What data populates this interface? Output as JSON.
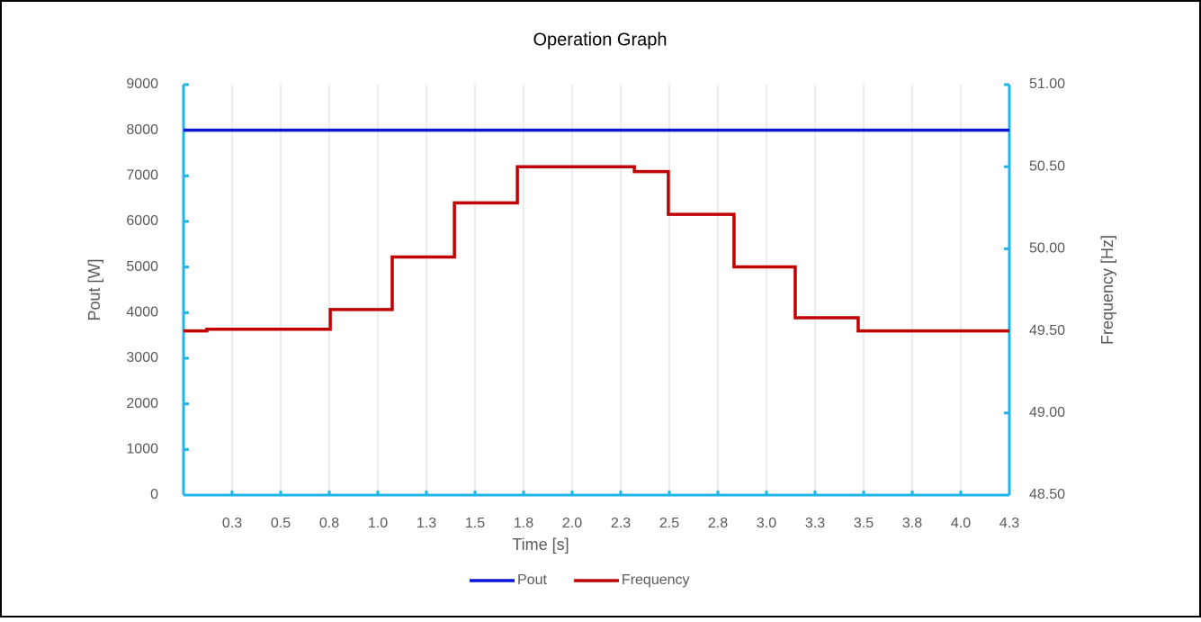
{
  "chart_data": {
    "type": "line",
    "title": "Operation Graph",
    "x_label": "Time [s]",
    "y_label": "Pout [W]",
    "y2_label": "Frequency [Hz]",
    "xlim": [
      0,
      4.25
    ],
    "xticks": [
      {
        "value": 0.25,
        "label": "0.3"
      },
      0.5,
      {
        "value": 0.75,
        "label": "0.8"
      },
      {
        "value": 1,
        "label": "1.0"
      },
      {
        "value": 1.25,
        "label": "1.3"
      },
      1.5,
      {
        "value": 1.75,
        "label": "1.8"
      },
      {
        "value": 2,
        "label": "2.0"
      },
      {
        "value": 2.25,
        "label": "2.3"
      },
      2.5,
      {
        "value": 2.75,
        "label": "2.8"
      },
      {
        "value": 3,
        "label": "3.0"
      },
      {
        "value": 3.25,
        "label": "3.3"
      },
      3.5,
      {
        "value": 3.75,
        "label": "3.8"
      },
      {
        "value": 4,
        "label": "4.0"
      },
      {
        "value": 4.25,
        "label": "4.3"
      }
    ],
    "ylim": [
      0,
      9000
    ],
    "yticks": [
      0,
      1000,
      2000,
      3000,
      4000,
      5000,
      6000,
      7000,
      8000,
      9000
    ],
    "y2lim": [
      48.5,
      51
    ],
    "y2ticks": [
      {
        "value": 48.5,
        "label": "48.50"
      },
      {
        "value": 49,
        "label": "49.00"
      },
      {
        "value": 49.5,
        "label": "49.50"
      },
      {
        "value": 50,
        "label": "50.00"
      },
      {
        "value": 50.5,
        "label": "50.50"
      },
      {
        "value": 51,
        "label": "51.00"
      }
    ],
    "grid": "x",
    "legend": "bottom",
    "series": [
      {
        "name": "Pout",
        "color": "#0a14d8",
        "x": [
          0,
          4.25
        ],
        "values": [
          8000,
          8000
        ]
      },
      {
        "name": "Frequency",
        "color": "#c00000",
        "axis": "y2",
        "x": [
          0,
          0.12,
          0.12,
          0.755,
          0.755,
          1.074,
          1.074,
          1.394,
          1.394,
          1.718,
          1.718,
          2.32,
          2.32,
          2.495,
          2.495,
          2.833,
          2.833,
          3.148,
          3.148,
          3.472,
          3.472,
          4.25
        ],
        "values": [
          49.5,
          49.5,
          49.51,
          49.51,
          49.63,
          49.63,
          49.95,
          49.95,
          50.28,
          50.28,
          50.5,
          50.5,
          50.47,
          50.47,
          50.21,
          50.21,
          49.89,
          49.89,
          49.58,
          49.58,
          49.5,
          49.5
        ]
      }
    ]
  }
}
